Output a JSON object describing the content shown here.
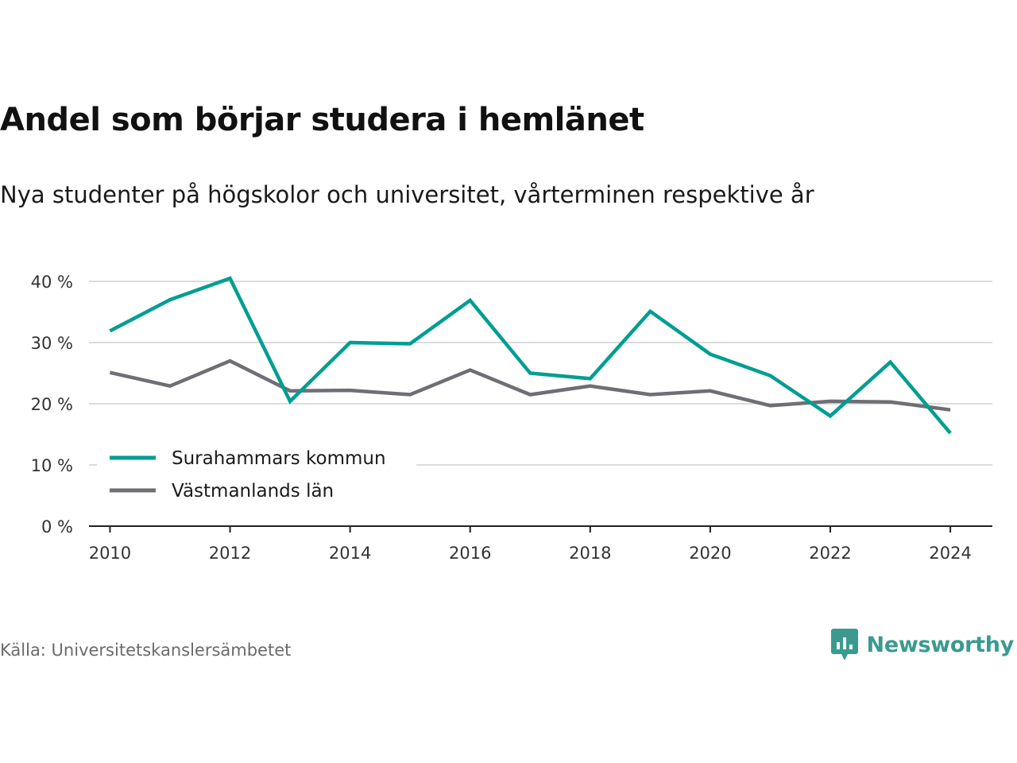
{
  "header": {
    "title": "Andel som börjar studera i hemlänet",
    "subtitle": "Nya studenter på högskolor och universitet, vårterminen respektive år"
  },
  "footer": {
    "source": "Källa: Universitetskanslersämbetet",
    "brand": "Newsworthy",
    "brand_icon": "newsworthy-logo-icon",
    "brand_color": "#3a9a90"
  },
  "chart_data": {
    "type": "line",
    "title": "Andel som börjar studera i hemlänet",
    "subtitle": "Nya studenter på högskolor och universitet, vårterminen respektive år",
    "xlabel": "",
    "ylabel": "",
    "x": [
      2010,
      2011,
      2012,
      2013,
      2014,
      2015,
      2016,
      2017,
      2018,
      2019,
      2020,
      2021,
      2022,
      2023,
      2024
    ],
    "x_ticks": [
      "2010",
      "2012",
      "2014",
      "2016",
      "2018",
      "2020",
      "2022",
      "2024"
    ],
    "y_ticks": [
      "0 %",
      "10 %",
      "20 %",
      "30 %",
      "40 %"
    ],
    "y_tick_values": [
      0,
      10,
      20,
      30,
      40
    ],
    "xlim": [
      2009.65,
      2024.7
    ],
    "ylim": [
      0,
      40
    ],
    "grid": true,
    "legend_position": "bottom-left",
    "series": [
      {
        "name": "Surahammars kommun",
        "color": "#009e92",
        "values": [
          31.9,
          37.0,
          40.5,
          20.4,
          30.0,
          29.8,
          36.9,
          25.0,
          24.1,
          35.1,
          28.1,
          24.6,
          18.0,
          26.8,
          15.2
        ]
      },
      {
        "name": "Västmanlands län",
        "color": "#6f6e76",
        "values": [
          25.1,
          22.9,
          27.0,
          22.1,
          22.2,
          21.5,
          25.5,
          21.5,
          22.9,
          21.5,
          22.1,
          19.7,
          20.4,
          20.3,
          19.0
        ]
      }
    ]
  }
}
